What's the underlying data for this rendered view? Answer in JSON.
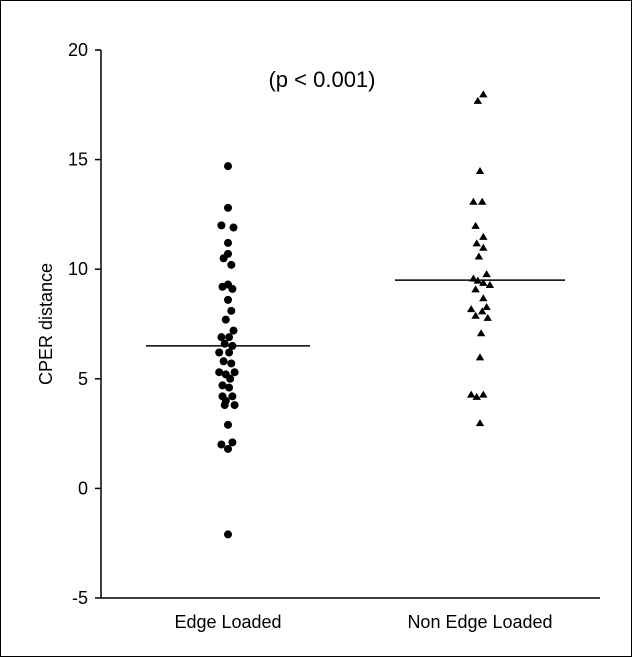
{
  "chart_data": {
    "type": "scatter",
    "annotation": "(p < 0.001)",
    "xlabel": "",
    "ylabel": "CPER distance",
    "ylim": [
      -5,
      20
    ],
    "yticks": [
      "-5",
      "0",
      "5",
      "10",
      "15",
      "20"
    ],
    "categories": [
      "Edge Loaded",
      "Non Edge Loaded"
    ],
    "grid": false,
    "series": [
      {
        "category": "Edge Loaded",
        "marker": "circle",
        "mean": 6.5,
        "points": [
          [
            0,
            14.7
          ],
          [
            0,
            12.8
          ],
          [
            -0.6,
            12.0
          ],
          [
            0.5,
            11.9
          ],
          [
            0,
            11.2
          ],
          [
            0,
            10.7
          ],
          [
            -0.4,
            10.5
          ],
          [
            0.3,
            10.2
          ],
          [
            0,
            9.3
          ],
          [
            -0.5,
            9.2
          ],
          [
            0.4,
            9.1
          ],
          [
            0,
            8.6
          ],
          [
            0.3,
            8.1
          ],
          [
            -0.2,
            7.7
          ],
          [
            0.5,
            7.2
          ],
          [
            -0.6,
            6.9
          ],
          [
            0.1,
            6.9
          ],
          [
            -0.3,
            6.6
          ],
          [
            0.4,
            6.5
          ],
          [
            -0.8,
            6.2
          ],
          [
            0.1,
            6.2
          ],
          [
            -0.4,
            5.8
          ],
          [
            0.3,
            5.7
          ],
          [
            -0.8,
            5.3
          ],
          [
            0.6,
            5.3
          ],
          [
            -0.2,
            5.2
          ],
          [
            0.2,
            5.0
          ],
          [
            -0.5,
            4.7
          ],
          [
            0.1,
            4.6
          ],
          [
            -0.5,
            4.2
          ],
          [
            0.4,
            4.2
          ],
          [
            -0.2,
            4.0
          ],
          [
            0.6,
            3.8
          ],
          [
            -0.3,
            3.8
          ],
          [
            0,
            2.9
          ],
          [
            0.4,
            2.1
          ],
          [
            -0.6,
            2.0
          ],
          [
            0,
            1.8
          ],
          [
            0,
            -2.1
          ]
        ]
      },
      {
        "category": "Non Edge Loaded",
        "marker": "triangle",
        "mean": 9.5,
        "points": [
          [
            0.3,
            18.0
          ],
          [
            -0.2,
            17.7
          ],
          [
            0,
            14.5
          ],
          [
            -0.6,
            13.1
          ],
          [
            0.2,
            13.1
          ],
          [
            -0.4,
            12.0
          ],
          [
            0.3,
            11.5
          ],
          [
            -0.3,
            11.2
          ],
          [
            0.3,
            11.0
          ],
          [
            -0.1,
            10.6
          ],
          [
            0.6,
            9.8
          ],
          [
            -0.6,
            9.6
          ],
          [
            -0.2,
            9.5
          ],
          [
            0.3,
            9.4
          ],
          [
            0.9,
            9.3
          ],
          [
            -0.4,
            9.1
          ],
          [
            0.3,
            8.7
          ],
          [
            0.6,
            8.3
          ],
          [
            -0.8,
            8.2
          ],
          [
            0.2,
            8.1
          ],
          [
            -0.4,
            7.9
          ],
          [
            0.7,
            7.8
          ],
          [
            0.1,
            7.1
          ],
          [
            0,
            6.0
          ],
          [
            -0.8,
            4.3
          ],
          [
            0.3,
            4.3
          ],
          [
            -0.3,
            4.2
          ],
          [
            0,
            3.0
          ]
        ]
      }
    ]
  }
}
